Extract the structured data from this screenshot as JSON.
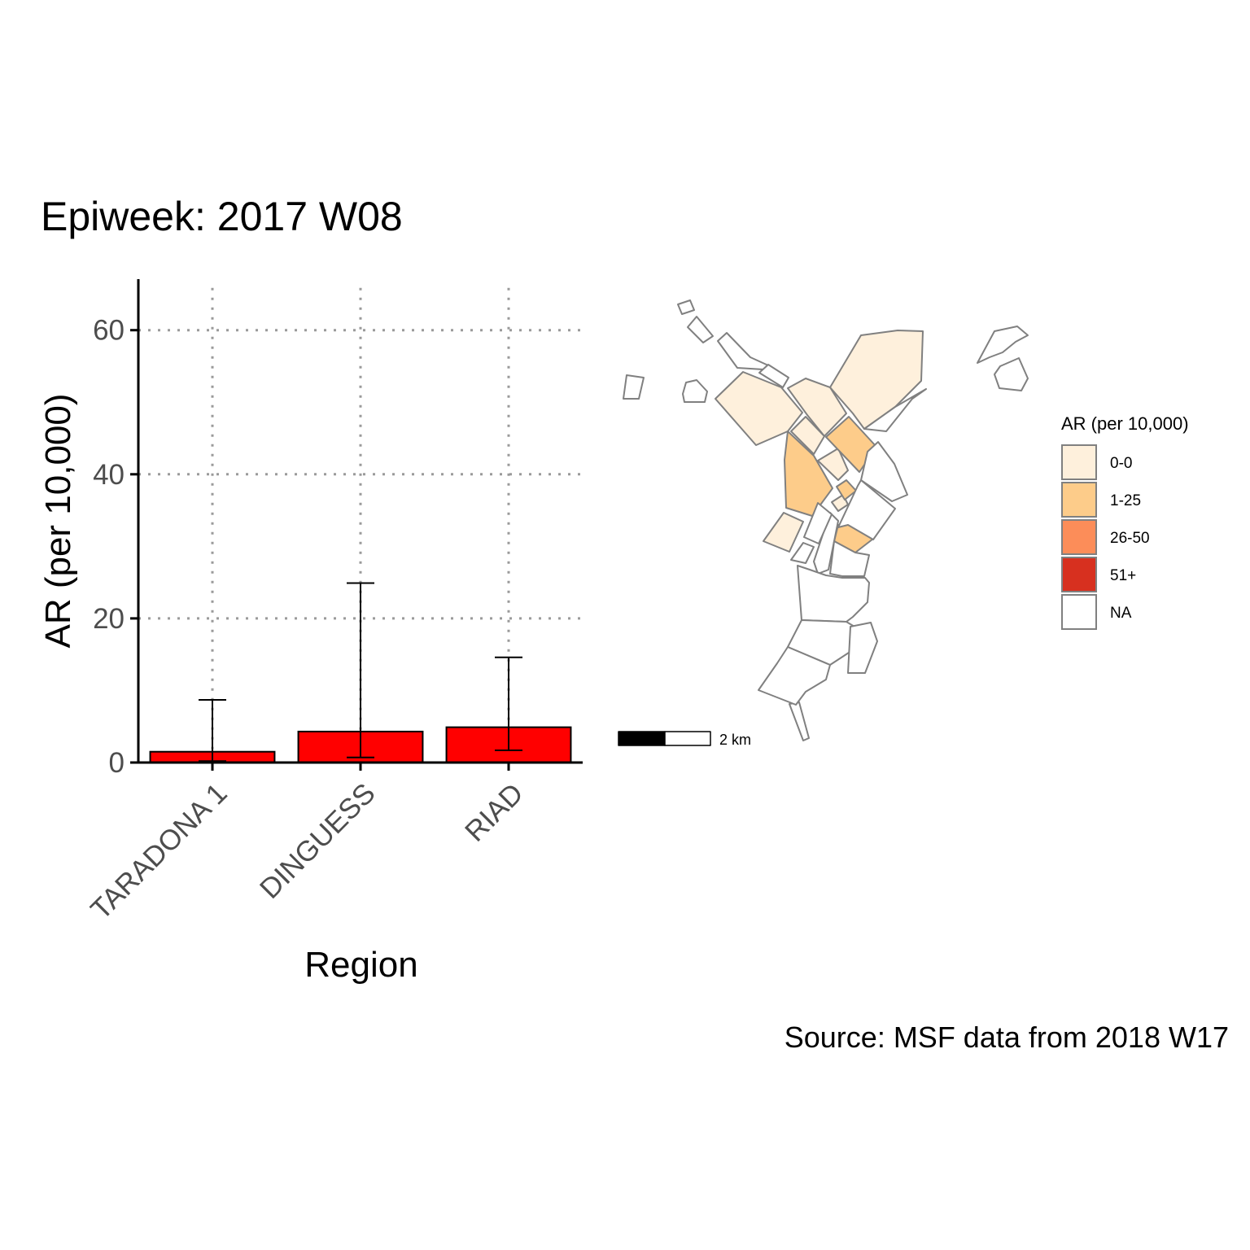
{
  "title": "Epiweek: 2017 W08",
  "caption": "Source: MSF data from 2018 W17",
  "chart_data": [
    {
      "type": "bar",
      "xlabel": "Region",
      "ylabel": "AR (per 10,000)",
      "categories": [
        "TARADONA 1",
        "DINGUESS",
        "RIAD"
      ],
      "values": [
        1.5,
        4.3,
        4.9
      ],
      "error_lower": [
        0.2,
        0.7,
        1.7
      ],
      "error_upper": [
        8.7,
        24.9,
        14.6
      ],
      "ylim": [
        0,
        67
      ],
      "yticks": [
        0,
        20,
        40,
        60
      ],
      "grid": "dotted major gridlines",
      "bar_color": "#ff0000"
    },
    {
      "type": "choropleth map",
      "legend_title": "AR (per 10,000)",
      "legend_position": "right",
      "legend": [
        {
          "label": "0-0",
          "color": "#fef0dc"
        },
        {
          "label": "1-25",
          "color": "#fdcc8a"
        },
        {
          "label": "26-50",
          "color": "#fc8d59"
        },
        {
          "label": "51+",
          "color": "#d7301f"
        },
        {
          "label": "NA",
          "color": "#ffffff"
        }
      ],
      "scale_bar_label": "2 km",
      "region_border_color": "#808080"
    }
  ]
}
